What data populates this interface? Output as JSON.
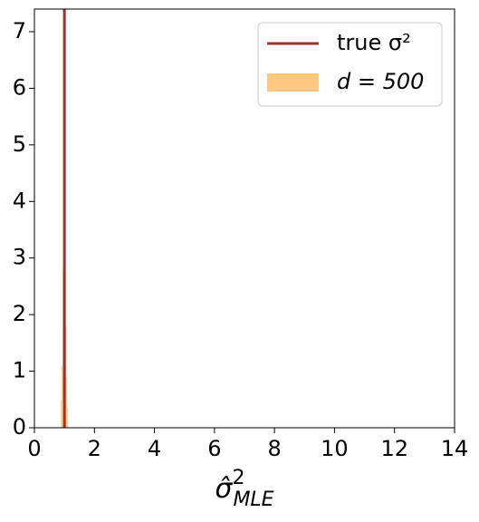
{
  "chart_data": {
    "type": "histogram",
    "xlabel": [
      "σ̂",
      "2",
      "MLE"
    ],
    "bins": [
      0.88,
      0.91,
      0.94,
      0.97,
      1.0,
      1.03,
      1.06,
      1.09,
      1.12
    ],
    "series": [
      {
        "name": "d = 500",
        "color": "#ffc880",
        "values": [
          0.48,
          1.1,
          2.8,
          5.55,
          3.15,
          1.8,
          0.9,
          0.35
        ]
      }
    ],
    "vlines": [
      {
        "name": "true σ²",
        "x": 1,
        "color": "#a0302d"
      }
    ],
    "xlim": [
      0,
      14
    ],
    "xticks": [
      0,
      2,
      4,
      6,
      8,
      10,
      12,
      14
    ],
    "ylim": [
      0,
      7.4
    ],
    "yticks": [
      0,
      1,
      2,
      3,
      4,
      5,
      6,
      7
    ],
    "legend": "upper right"
  }
}
